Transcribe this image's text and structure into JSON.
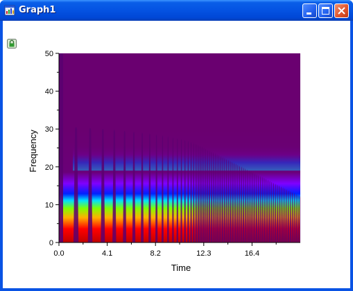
{
  "window": {
    "title": "Graph1",
    "buttons": [
      "minimize",
      "maximize",
      "close"
    ]
  },
  "toolbar": {
    "lock_icon": "lock-icon"
  },
  "chart_data": {
    "type": "heatmap",
    "xlabel": "Time",
    "ylabel": "Frequency",
    "x_ticks": [
      "0.0",
      "4.1",
      "8.2",
      "12.3",
      "16.4"
    ],
    "y_ticks": [
      "0",
      "10",
      "20",
      "30",
      "40",
      "50"
    ],
    "xlim": [
      0,
      20.5
    ],
    "ylim": [
      0,
      50
    ],
    "colormap": [
      "#c00000",
      "#ff0000",
      "#ffd000",
      "#00ff00",
      "#00d0ff",
      "#0000ff",
      "#8000ff",
      "#6a0073"
    ],
    "background_color": "#6a0070"
  }
}
